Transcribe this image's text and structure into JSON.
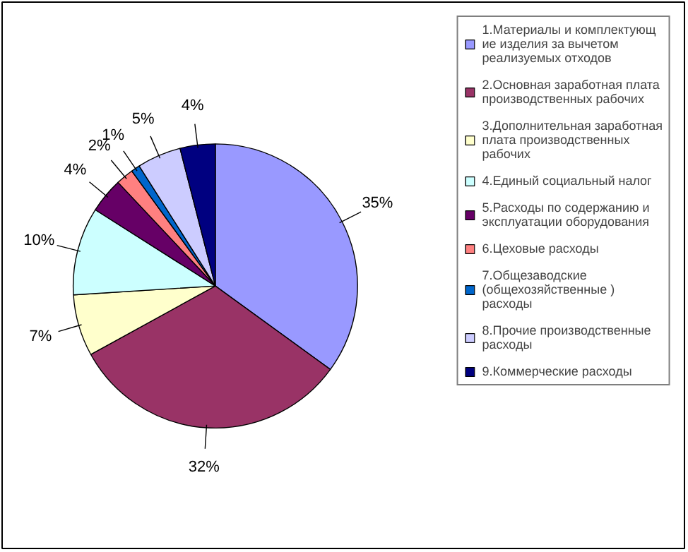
{
  "chart_data": {
    "type": "pie",
    "categories": [
      "1.Материалы и комплектующ ие изделия за вычетом реализуемых отходов",
      "2.Основная заработная плата производственных рабочих",
      "3.Дополнительная заработная плата производственных рабочих",
      "4.Единый социальный налог",
      "5.Расходы по содержанию и эксплуатации оборудования",
      "6.Цеховые расходы",
      "7.Общезаводские (общехозяйственные ) расходы",
      "8.Прочие производственные расходы",
      "9.Коммерческие расходы"
    ],
    "values": [
      35,
      32,
      7,
      10,
      4,
      2,
      1,
      5,
      4
    ],
    "value_labels": [
      "35%",
      "32%",
      "7%",
      "10%",
      "4%",
      "2%",
      "1%",
      "5%",
      "4%"
    ],
    "colors": [
      "#9999ff",
      "#993366",
      "#ffffcc",
      "#ccffff",
      "#660066",
      "#ff8080",
      "#0066cc",
      "#ccccff",
      "#000080"
    ],
    "legend": "right"
  }
}
